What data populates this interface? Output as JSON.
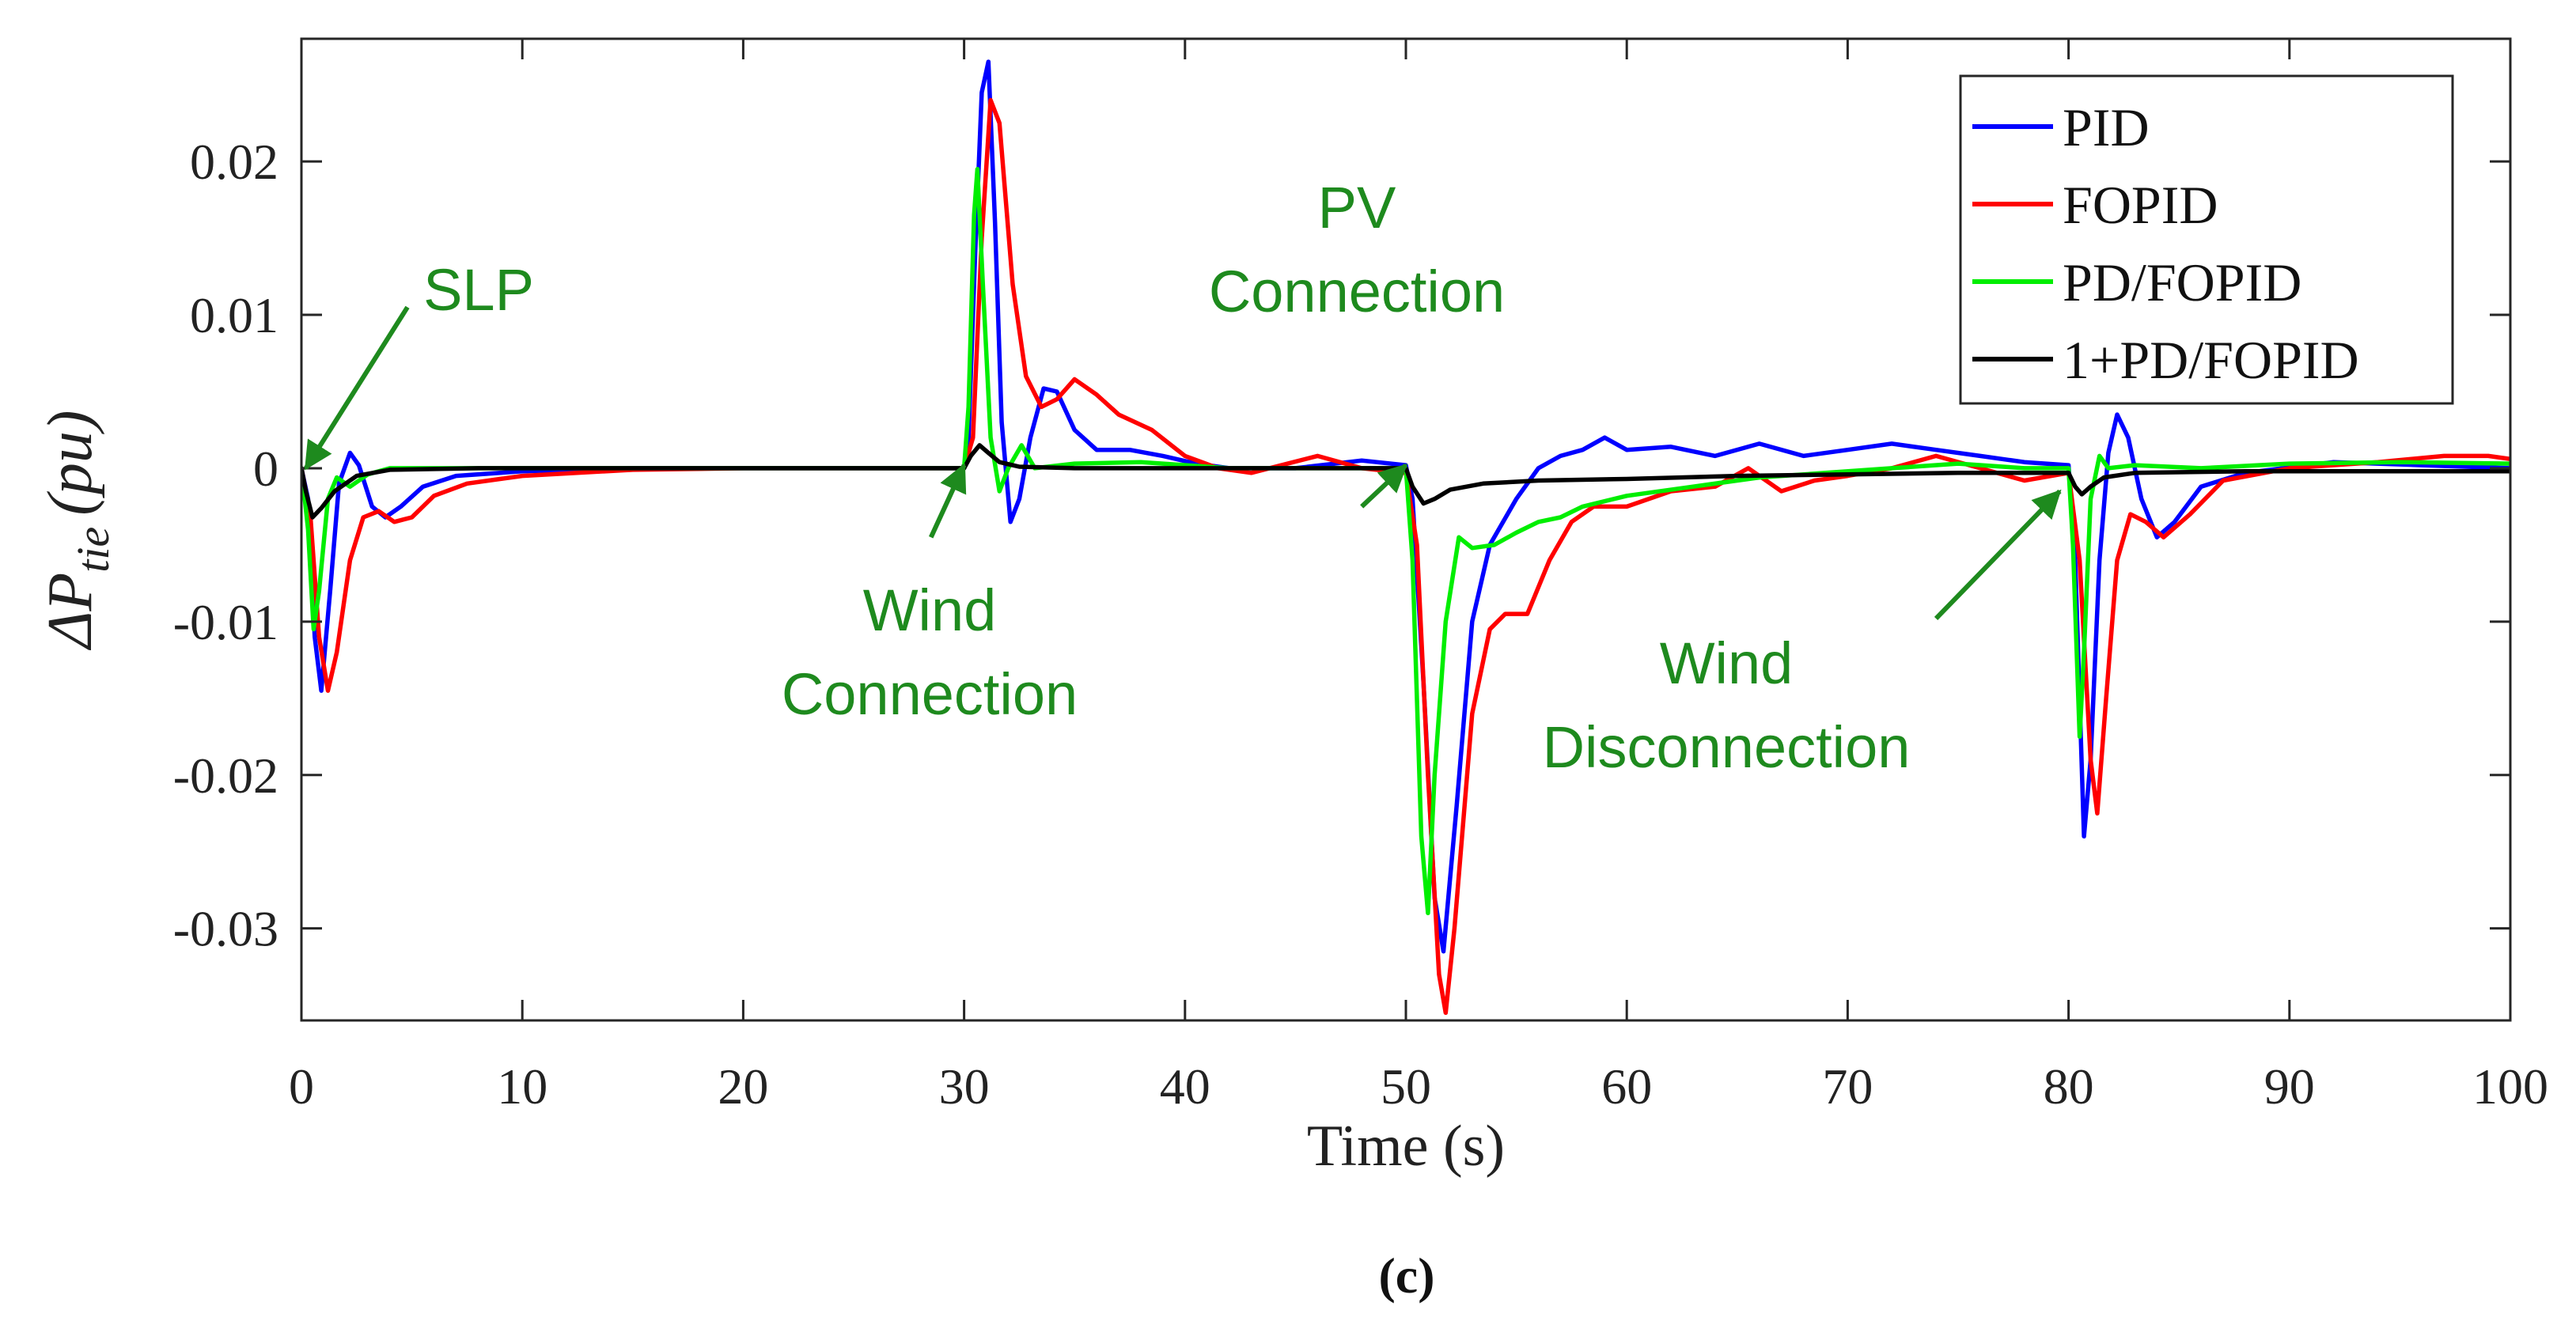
{
  "chart_data": {
    "type": "line",
    "panel_label": "(c)",
    "ylabel": {
      "prefix": "ΔP",
      "subscript": "tie",
      "unit": "(pu)"
    },
    "xlabel": "Time (s)",
    "xlim": [
      0,
      100
    ],
    "ylim": [
      -0.036,
      0.028
    ],
    "xticks": [
      0,
      10,
      20,
      30,
      40,
      50,
      60,
      70,
      80,
      90,
      100
    ],
    "xtick_labels": [
      "0",
      "10",
      "20",
      "30",
      "40",
      "50",
      "60",
      "70",
      "80",
      "90",
      "100"
    ],
    "yticks": [
      0.02,
      0.01,
      0,
      -0.01,
      -0.02,
      -0.03
    ],
    "ytick_labels": [
      "0.02",
      "0.01",
      "0",
      "-0.01",
      "-0.02",
      "-0.03"
    ],
    "grid": false,
    "legend_position": "top-right",
    "series": [
      {
        "name": "PID",
        "color": "#0000ff",
        "points": [
          [
            0,
            0
          ],
          [
            0.3,
            -0.002
          ],
          [
            0.6,
            -0.011
          ],
          [
            0.9,
            -0.0145
          ],
          [
            1.3,
            -0.008
          ],
          [
            1.7,
            -0.001
          ],
          [
            2.2,
            0.001
          ],
          [
            2.6,
            0.0002
          ],
          [
            3.2,
            -0.0025
          ],
          [
            3.8,
            -0.0032
          ],
          [
            4.5,
            -0.0025
          ],
          [
            5.5,
            -0.0012
          ],
          [
            7,
            -0.0005
          ],
          [
            10,
            -0.0002
          ],
          [
            15,
            0
          ],
          [
            30,
            0
          ],
          [
            30.2,
            0.002
          ],
          [
            30.5,
            0.014
          ],
          [
            30.8,
            0.0245
          ],
          [
            31.1,
            0.0265
          ],
          [
            31.4,
            0.016
          ],
          [
            31.7,
            0.003
          ],
          [
            32.1,
            -0.0035
          ],
          [
            32.5,
            -0.002
          ],
          [
            33,
            0.002
          ],
          [
            33.6,
            0.0052
          ],
          [
            34.2,
            0.005
          ],
          [
            35,
            0.0025
          ],
          [
            36,
            0.0012
          ],
          [
            37.5,
            0.0012
          ],
          [
            39,
            0.0008
          ],
          [
            40.5,
            0.0003
          ],
          [
            42,
            0
          ],
          [
            45,
            0
          ],
          [
            48,
            0.0005
          ],
          [
            50,
            0.0002
          ],
          [
            50.3,
            -0.002
          ],
          [
            50.8,
            -0.014
          ],
          [
            51.3,
            -0.028
          ],
          [
            51.7,
            -0.0315
          ],
          [
            52.3,
            -0.022
          ],
          [
            53,
            -0.01
          ],
          [
            53.8,
            -0.005
          ],
          [
            55,
            -0.002
          ],
          [
            56,
            0
          ],
          [
            57,
            0.0008
          ],
          [
            58,
            0.0012
          ],
          [
            59,
            0.002
          ],
          [
            60,
            0.0012
          ],
          [
            62,
            0.0014
          ],
          [
            64,
            0.0008
          ],
          [
            66,
            0.0016
          ],
          [
            68,
            0.0008
          ],
          [
            70,
            0.0012
          ],
          [
            72,
            0.0016
          ],
          [
            74,
            0.0012
          ],
          [
            76,
            0.0008
          ],
          [
            78,
            0.0004
          ],
          [
            80,
            0.0002
          ],
          [
            80.3,
            -0.006
          ],
          [
            80.7,
            -0.024
          ],
          [
            81,
            -0.019
          ],
          [
            81.4,
            -0.006
          ],
          [
            81.8,
            0.001
          ],
          [
            82.2,
            0.0035
          ],
          [
            82.7,
            0.002
          ],
          [
            83.3,
            -0.002
          ],
          [
            84,
            -0.0045
          ],
          [
            84.8,
            -0.0035
          ],
          [
            86,
            -0.0012
          ],
          [
            88,
            -0.0003
          ],
          [
            92,
            0.0004
          ],
          [
            96,
            0.0002
          ],
          [
            100,
            0
          ]
        ]
      },
      {
        "name": "FOPID",
        "color": "#ff0000",
        "points": [
          [
            0,
            0
          ],
          [
            0.4,
            -0.003
          ],
          [
            0.8,
            -0.011
          ],
          [
            1.2,
            -0.0145
          ],
          [
            1.6,
            -0.012
          ],
          [
            2.2,
            -0.006
          ],
          [
            2.8,
            -0.0032
          ],
          [
            3.5,
            -0.0028
          ],
          [
            4.2,
            -0.0035
          ],
          [
            5,
            -0.0032
          ],
          [
            6,
            -0.0018
          ],
          [
            7.5,
            -0.001
          ],
          [
            10,
            -0.0005
          ],
          [
            15,
            -0.0001
          ],
          [
            20,
            0
          ],
          [
            30,
            0
          ],
          [
            30.4,
            0.002
          ],
          [
            30.8,
            0.015
          ],
          [
            31.2,
            0.024
          ],
          [
            31.6,
            0.0225
          ],
          [
            32.2,
            0.012
          ],
          [
            32.8,
            0.006
          ],
          [
            33.5,
            0.004
          ],
          [
            34.2,
            0.0045
          ],
          [
            35,
            0.0058
          ],
          [
            36,
            0.0048
          ],
          [
            37,
            0.0035
          ],
          [
            38.5,
            0.0025
          ],
          [
            40,
            0.0008
          ],
          [
            41.5,
            0
          ],
          [
            43,
            -0.0003
          ],
          [
            46,
            0.0008
          ],
          [
            48,
            0
          ],
          [
            50,
            -0.0003
          ],
          [
            50.5,
            -0.005
          ],
          [
            51,
            -0.02
          ],
          [
            51.5,
            -0.033
          ],
          [
            51.8,
            -0.0355
          ],
          [
            52.2,
            -0.03
          ],
          [
            53,
            -0.016
          ],
          [
            53.8,
            -0.0105
          ],
          [
            54.5,
            -0.0095
          ],
          [
            55.5,
            -0.0095
          ],
          [
            56.5,
            -0.006
          ],
          [
            57.5,
            -0.0035
          ],
          [
            58.5,
            -0.0025
          ],
          [
            60,
            -0.0025
          ],
          [
            62,
            -0.0015
          ],
          [
            64,
            -0.0012
          ],
          [
            65.5,
            0
          ],
          [
            67,
            -0.0015
          ],
          [
            68.5,
            -0.0008
          ],
          [
            70,
            -0.0005
          ],
          [
            72,
            0
          ],
          [
            74,
            0.0008
          ],
          [
            76,
            0
          ],
          [
            78,
            -0.0008
          ],
          [
            80,
            -0.0003
          ],
          [
            80.5,
            -0.006
          ],
          [
            81,
            -0.019
          ],
          [
            81.3,
            -0.0225
          ],
          [
            81.7,
            -0.015
          ],
          [
            82.2,
            -0.006
          ],
          [
            82.8,
            -0.003
          ],
          [
            83.5,
            -0.0035
          ],
          [
            84.3,
            -0.0045
          ],
          [
            85.5,
            -0.003
          ],
          [
            87,
            -0.0008
          ],
          [
            90,
            0
          ],
          [
            94,
            0.0004
          ],
          [
            97,
            0.0008
          ],
          [
            99,
            0.0008
          ],
          [
            100,
            0.0006
          ]
        ]
      },
      {
        "name": "PD/FOPID",
        "color": "#00ee00",
        "points": [
          [
            0,
            0
          ],
          [
            0.3,
            -0.004
          ],
          [
            0.55,
            -0.0105
          ],
          [
            0.8,
            -0.008
          ],
          [
            1.2,
            -0.002
          ],
          [
            1.6,
            -0.0006
          ],
          [
            2.2,
            -0.0012
          ],
          [
            3,
            -0.0004
          ],
          [
            4,
            0
          ],
          [
            30,
            0
          ],
          [
            30.2,
            0.004
          ],
          [
            30.45,
            0.0165
          ],
          [
            30.6,
            0.0195
          ],
          [
            30.85,
            0.012
          ],
          [
            31.2,
            0.002
          ],
          [
            31.6,
            -0.0015
          ],
          [
            32,
            0
          ],
          [
            32.6,
            0.0015
          ],
          [
            33.2,
            0
          ],
          [
            35,
            0.0003
          ],
          [
            38,
            0.0004
          ],
          [
            42,
            0
          ],
          [
            50,
            0
          ],
          [
            50.3,
            -0.006
          ],
          [
            50.7,
            -0.024
          ],
          [
            51,
            -0.029
          ],
          [
            51.3,
            -0.02
          ],
          [
            51.8,
            -0.01
          ],
          [
            52.4,
            -0.0045
          ],
          [
            53,
            -0.0052
          ],
          [
            54,
            -0.005
          ],
          [
            55,
            -0.0042
          ],
          [
            56,
            -0.0035
          ],
          [
            57,
            -0.0032
          ],
          [
            58,
            -0.0025
          ],
          [
            60,
            -0.0018
          ],
          [
            63,
            -0.0012
          ],
          [
            66,
            -0.0006
          ],
          [
            69,
            -0.0003
          ],
          [
            72,
            0
          ],
          [
            75,
            0.0003
          ],
          [
            78,
            0
          ],
          [
            80,
            0
          ],
          [
            80.2,
            -0.005
          ],
          [
            80.5,
            -0.0175
          ],
          [
            80.7,
            -0.012
          ],
          [
            81,
            -0.002
          ],
          [
            81.4,
            0.0008
          ],
          [
            81.8,
            0
          ],
          [
            83,
            0.0002
          ],
          [
            86,
            0
          ],
          [
            90,
            0.0003
          ],
          [
            95,
            0.0004
          ],
          [
            100,
            0.0003
          ]
        ]
      },
      {
        "name": "1+PD/FOPID",
        "color": "#000000",
        "points": [
          [
            0,
            0
          ],
          [
            0.2,
            -0.0015
          ],
          [
            0.5,
            -0.0032
          ],
          [
            0.9,
            -0.0026
          ],
          [
            1.5,
            -0.0015
          ],
          [
            2.5,
            -0.0005
          ],
          [
            4,
            -0.0001
          ],
          [
            8,
            0
          ],
          [
            30,
            0
          ],
          [
            30.3,
            0.0008
          ],
          [
            30.7,
            0.0015
          ],
          [
            31.1,
            0.001
          ],
          [
            31.6,
            0.0004
          ],
          [
            32.5,
            0.0001
          ],
          [
            35,
            0
          ],
          [
            50,
            0
          ],
          [
            50.3,
            -0.0012
          ],
          [
            50.8,
            -0.0023
          ],
          [
            51.3,
            -0.002
          ],
          [
            52,
            -0.0014
          ],
          [
            53.5,
            -0.001
          ],
          [
            56,
            -0.0008
          ],
          [
            60,
            -0.0007
          ],
          [
            65,
            -0.0005
          ],
          [
            70,
            -0.0004
          ],
          [
            75,
            -0.0003
          ],
          [
            80,
            -0.0003
          ],
          [
            80.3,
            -0.0012
          ],
          [
            80.6,
            -0.0017
          ],
          [
            81,
            -0.0012
          ],
          [
            81.6,
            -0.0006
          ],
          [
            83,
            -0.0003
          ],
          [
            88,
            -0.0002
          ],
          [
            100,
            -0.0002
          ]
        ]
      }
    ],
    "annotations": [
      {
        "lines": [
          "SLP"
        ],
        "color": "#1e8a1e",
        "target": [
          0.2,
          0.0
        ],
        "tail": [
          4.8,
          0.0105
        ]
      },
      {
        "lines": [
          "Wind",
          "Connection"
        ],
        "color": "#1e8a1e",
        "target": [
          30.0,
          0.0002
        ],
        "tail": [
          28.5,
          -0.0045
        ]
      },
      {
        "lines": [
          "PV",
          "Connection"
        ],
        "color": "#1e8a1e",
        "target": [
          50.0,
          0.0002
        ],
        "tail": [
          48.0,
          -0.0025
        ]
      },
      {
        "lines": [
          "Wind",
          "Disconnection"
        ],
        "color": "#1e8a1e",
        "target": [
          79.6,
          -0.0015
        ],
        "tail": [
          74.0,
          -0.0098
        ]
      }
    ]
  }
}
